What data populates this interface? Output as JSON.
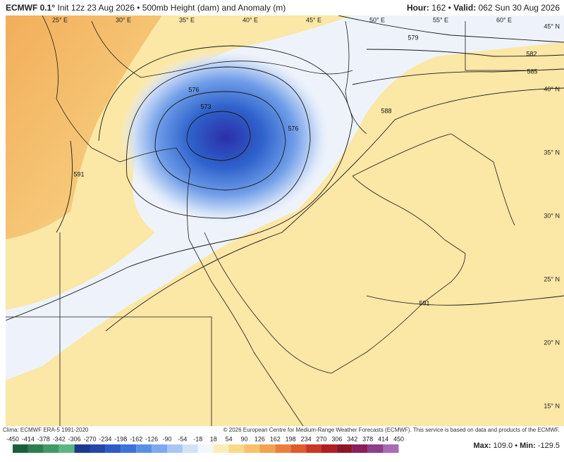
{
  "header": {
    "model": "ECMWF 0.1°",
    "description": "Init 12z 23 Aug 2026 • 500mb Height (dam) and Anomaly (m)",
    "hour_label": "Hour:",
    "hour": "162 •",
    "valid_label": "Valid:",
    "valid": "062 Sun 30 Aug 2026"
  },
  "map": {
    "longitudes": [
      "25° E",
      "30° E",
      "35° E",
      "40° E",
      "45° E",
      "50° E",
      "55° E",
      "60° E"
    ],
    "latitudes": [
      "45° N",
      "40° N",
      "35° N",
      "30° N",
      "25° N",
      "20° N",
      "15° N"
    ],
    "contour_labels": [
      "579",
      "582",
      "585",
      "588",
      "591",
      "591",
      "576",
      "573",
      "576"
    ]
  },
  "footer": {
    "climo": "Clima: ECMWF ERA-5 1991-2020",
    "copyright": "© 2026 European Centre for Medium-Range Weather Forecasts (ECMWF). This service is based on data and products of the ECMWF."
  },
  "colorbar": {
    "labels": [
      -450,
      -414,
      -378,
      -342,
      -306,
      -270,
      -234,
      -198,
      -162,
      -126,
      -90,
      -54,
      -18,
      18,
      54,
      90,
      126,
      162,
      198,
      234,
      270,
      306,
      342,
      378,
      414,
      450
    ],
    "colors": [
      "#1b5e3a",
      "#2e7d4f",
      "#3f9a66",
      "#5cb684",
      "#1c3a8c",
      "#2448a8",
      "#2e5cc4",
      "#3a72d8",
      "#5a8fe6",
      "#7ea9ee",
      "#a9c5f3",
      "#d3e1f8",
      "#f3f6fb",
      "#fbeeb4",
      "#fbd98a",
      "#f8c06a",
      "#f3a24f",
      "#ec7f3c",
      "#e05a2e",
      "#cc3624",
      "#b01e22",
      "#8c1628",
      "#8a1f5a",
      "#8e3d8c",
      "#a86cb4"
    ],
    "stats": [
      "Max:",
      "109.0 •",
      "Min:",
      "-129.5"
    ]
  }
}
